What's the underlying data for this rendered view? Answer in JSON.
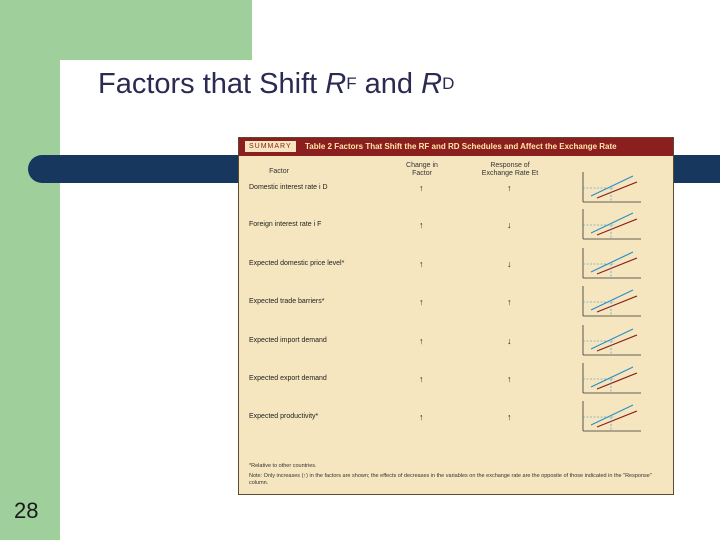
{
  "slide": {
    "title_parts": [
      "Factors that Shift ",
      "R",
      "F",
      " and ",
      "R",
      "D"
    ],
    "page_number": "28"
  },
  "table": {
    "summary_tag": "SUMMARY",
    "title": "Table 2 Factors That Shift the RF and RD Schedules and Affect the Exchange Rate",
    "col_factor": "Factor",
    "col_change": "Change in Factor",
    "col_response": "Response of Exchange Rate Et",
    "rows": [
      {
        "factor": "Domestic interest rate i D",
        "change": "↑",
        "response": "↑"
      },
      {
        "factor": "Foreign interest rate i F",
        "change": "↑",
        "response": "↓"
      },
      {
        "factor": "Expected domestic price level*",
        "change": "↑",
        "response": "↓"
      },
      {
        "factor": "Expected trade barriers*",
        "change": "↑",
        "response": "↑"
      },
      {
        "factor": "Expected import demand",
        "change": "↑",
        "response": "↓"
      },
      {
        "factor": "Expected export demand",
        "change": "↑",
        "response": "↑"
      },
      {
        "factor": "Expected productivity*",
        "change": "↑",
        "response": "↑"
      }
    ],
    "footnote_1": "*Relative to other countries.",
    "footnote_2": "Note: Only increases (↑) in the factors are shown; the effects of decreases in the variables on the exchange rate are the opposite of those indicated in the \"Response\" column."
  }
}
